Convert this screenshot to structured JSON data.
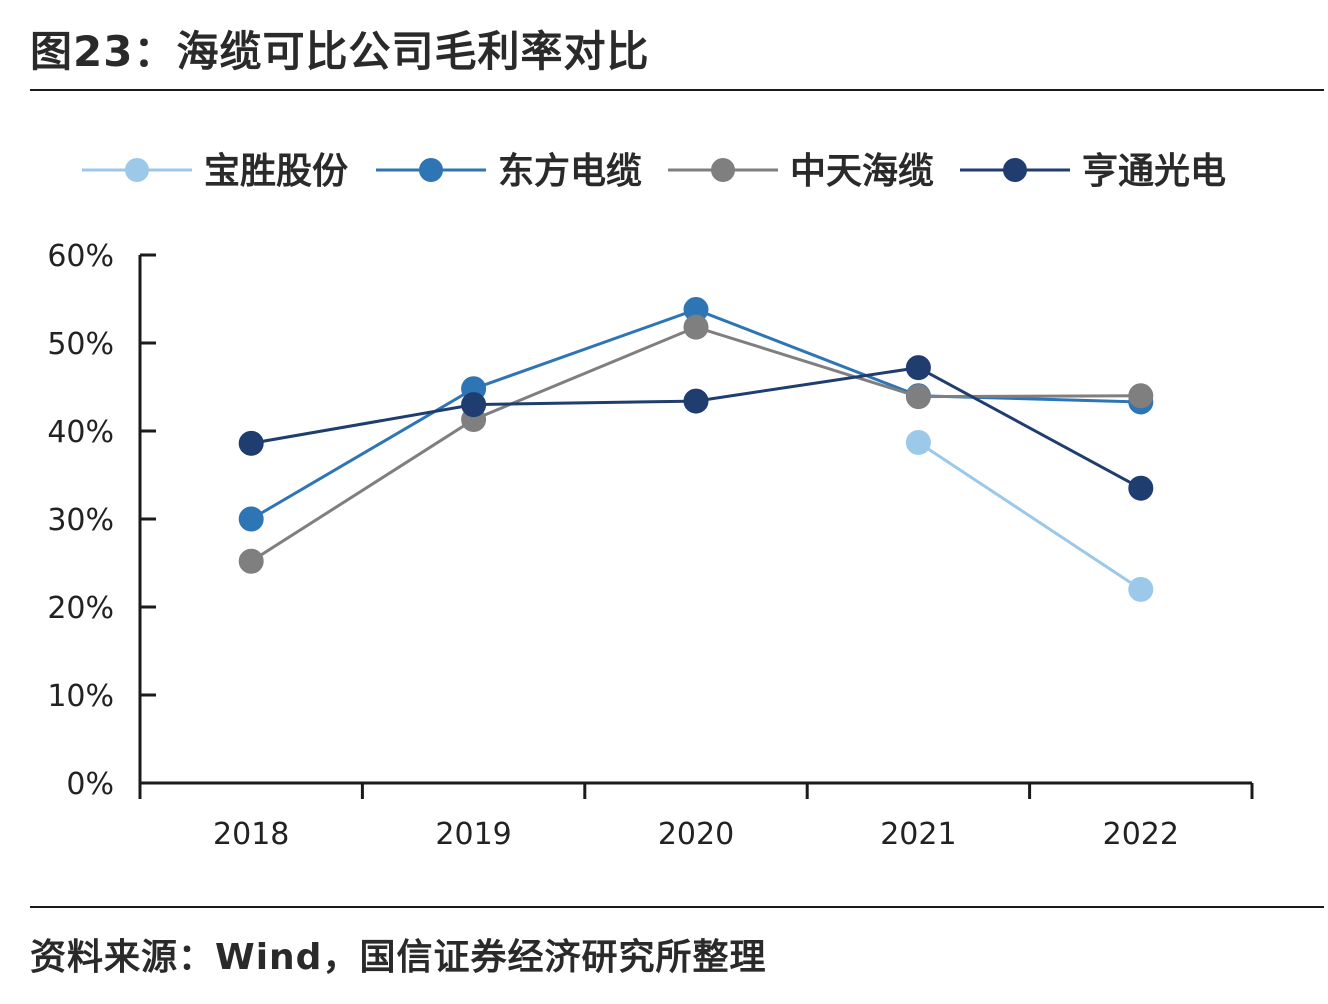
{
  "header": {
    "title": "图23：海缆可比公司毛利率对比"
  },
  "footer": {
    "source": "资料来源：Wind，国信证券经济研究所整理"
  },
  "colors": {
    "宝胜股份": "#9cc8ea",
    "东方电缆": "#2e75b6",
    "中天海缆": "#7f7f7f",
    "亨通光电": "#1f3d6e",
    "axis": "#1a1a1a"
  },
  "chart_data": {
    "type": "line",
    "title": "",
    "xlabel": "",
    "ylabel": "",
    "categories": [
      "2018",
      "2019",
      "2020",
      "2021",
      "2022"
    ],
    "ylim": [
      0,
      60
    ],
    "yticks": [
      "0%",
      "10%",
      "20%",
      "30%",
      "40%",
      "50%",
      "60%"
    ],
    "legend_position": "top",
    "grid": false,
    "series": [
      {
        "name": "宝胜股份",
        "values": [
          null,
          null,
          null,
          38.7,
          22.0
        ]
      },
      {
        "name": "东方电缆",
        "values": [
          30.0,
          44.8,
          53.8,
          44.0,
          43.3
        ]
      },
      {
        "name": "中天海缆",
        "values": [
          25.2,
          41.3,
          51.8,
          43.9,
          44.0
        ]
      },
      {
        "name": "亨通光电",
        "values": [
          38.6,
          43.0,
          43.4,
          47.2,
          33.5
        ]
      }
    ]
  }
}
